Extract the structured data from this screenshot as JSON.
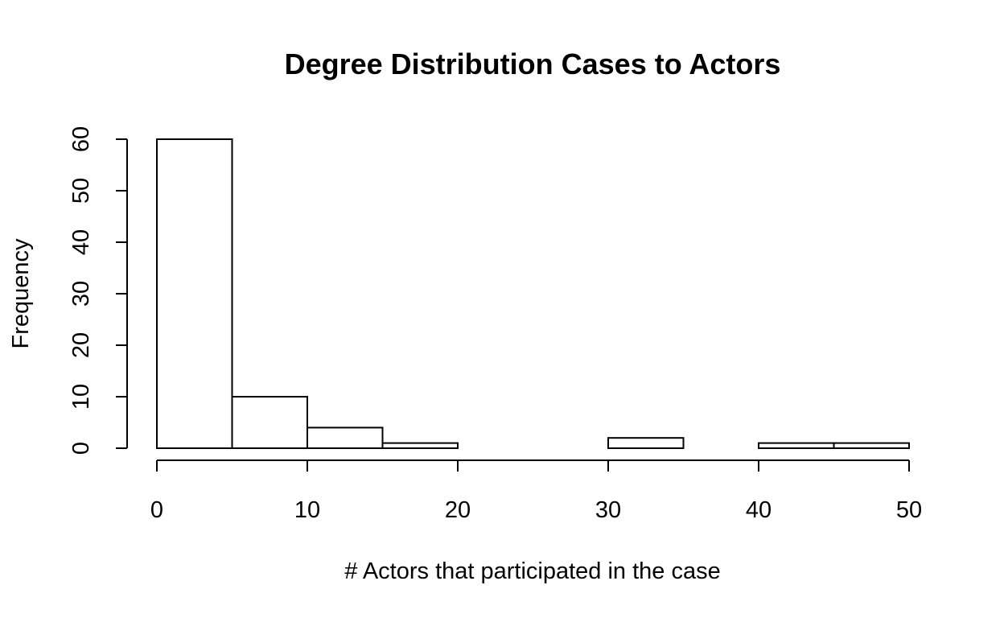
{
  "chart_data": {
    "type": "bar",
    "title": "Degree Distribution Cases to Actors",
    "xlabel": "# Actors that participated in the case",
    "ylabel": "Frequency",
    "bins": [
      {
        "start": 0,
        "end": 5,
        "value": 60
      },
      {
        "start": 5,
        "end": 10,
        "value": 10
      },
      {
        "start": 10,
        "end": 15,
        "value": 4
      },
      {
        "start": 15,
        "end": 20,
        "value": 1
      },
      {
        "start": 20,
        "end": 25,
        "value": 0
      },
      {
        "start": 25,
        "end": 30,
        "value": 0
      },
      {
        "start": 30,
        "end": 35,
        "value": 2
      },
      {
        "start": 35,
        "end": 40,
        "value": 0
      },
      {
        "start": 40,
        "end": 45,
        "value": 1
      },
      {
        "start": 45,
        "end": 50,
        "value": 1
      }
    ],
    "xlim": [
      0,
      50
    ],
    "ylim": [
      0,
      60
    ],
    "xticks": [
      0,
      10,
      20,
      30,
      40,
      50
    ],
    "yticks": [
      0,
      10,
      20,
      30,
      40,
      50,
      60
    ],
    "xtick_labels": [
      "0",
      "10",
      "20",
      "30",
      "40",
      "50"
    ],
    "ytick_labels": [
      "0",
      "10",
      "20",
      "30",
      "40",
      "50",
      "60"
    ],
    "grid": false,
    "legend": "none",
    "colors": {
      "bar_fill": "#ffffff",
      "bar_stroke": "#000000",
      "text": "#000000"
    }
  }
}
